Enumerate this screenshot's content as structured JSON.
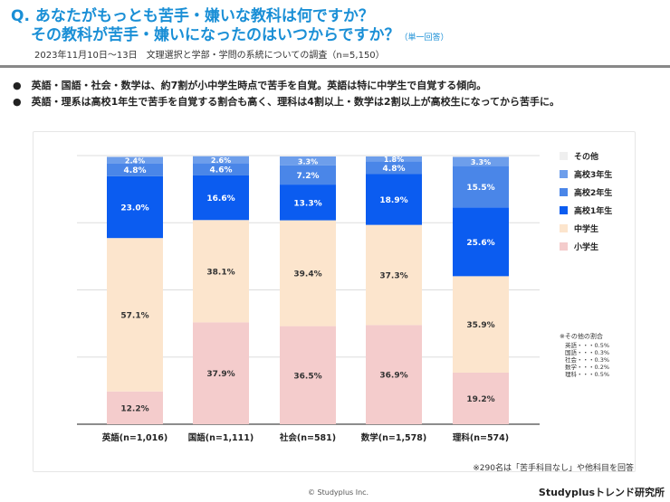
{
  "header": {
    "q_prefix": "Q.",
    "title_line1": "あなたがもっとも苦手・嫌いな教科は何ですか？",
    "title_line2": "その教科が苦手・嫌いになったのはいつからですか？",
    "answer_type": "（単一回答）",
    "survey": "2023年11月10日～13日　文理選択と学部・学問の系統についての調査（n=5,150）"
  },
  "bullets": [
    "英語・国語・社会・数学は、約7割が小中学生時点で苦手を自覚。英語は特に中学生で自覚する傾向。",
    "英語・理系は高校1年生で苦手を自覚する割合も高く、理科は4割以上・数学は2割以上が高校生になってから苦手に。"
  ],
  "chart_data": {
    "type": "bar",
    "stacked": true,
    "orientation": "vertical",
    "unit": "%",
    "ylim": [
      0,
      100
    ],
    "grid": true,
    "legend_placement": "right",
    "categories": [
      "英語(n=1,016)",
      "国語(n=1,111)",
      "社会(n=581)",
      "数学(n=1,578)",
      "理科(n=574)"
    ],
    "series": [
      {
        "name": "小学生",
        "color": "#f4cccc",
        "values": [
          12.2,
          37.9,
          36.5,
          36.9,
          19.2
        ]
      },
      {
        "name": "中学生",
        "color": "#fce5cd",
        "values": [
          57.1,
          38.1,
          39.4,
          37.3,
          35.9
        ]
      },
      {
        "name": "高校1年生",
        "color": "#0b5cf0",
        "values": [
          23.0,
          16.6,
          13.3,
          18.9,
          25.6
        ]
      },
      {
        "name": "高校2年生",
        "color": "#4a86e8",
        "values": [
          4.8,
          4.6,
          7.2,
          4.8,
          15.5
        ]
      },
      {
        "name": "高校3年生",
        "color": "#6d9eeb",
        "values": [
          2.4,
          2.6,
          3.3,
          1.8,
          3.3
        ]
      },
      {
        "name": "その他",
        "color": "#efefef",
        "values": [
          0.5,
          0.3,
          0.3,
          0.2,
          0.5
        ]
      }
    ],
    "legend_order": [
      "その他",
      "高校3年生",
      "高校2年生",
      "高校1年生",
      "中学生",
      "小学生"
    ],
    "other_note": {
      "title": "※その他の割合",
      "lines": [
        "英語・・・0.5%",
        "国語・・・0.3%",
        "社会・・・0.3%",
        "数学・・・0.2%",
        "理科・・・0.5%"
      ]
    }
  },
  "footer": {
    "note": "※290名は「苦手科目なし」や他科目を回答",
    "copyright": "© Studyplus Inc.",
    "brand": "Studyplusトレンド研究所"
  }
}
